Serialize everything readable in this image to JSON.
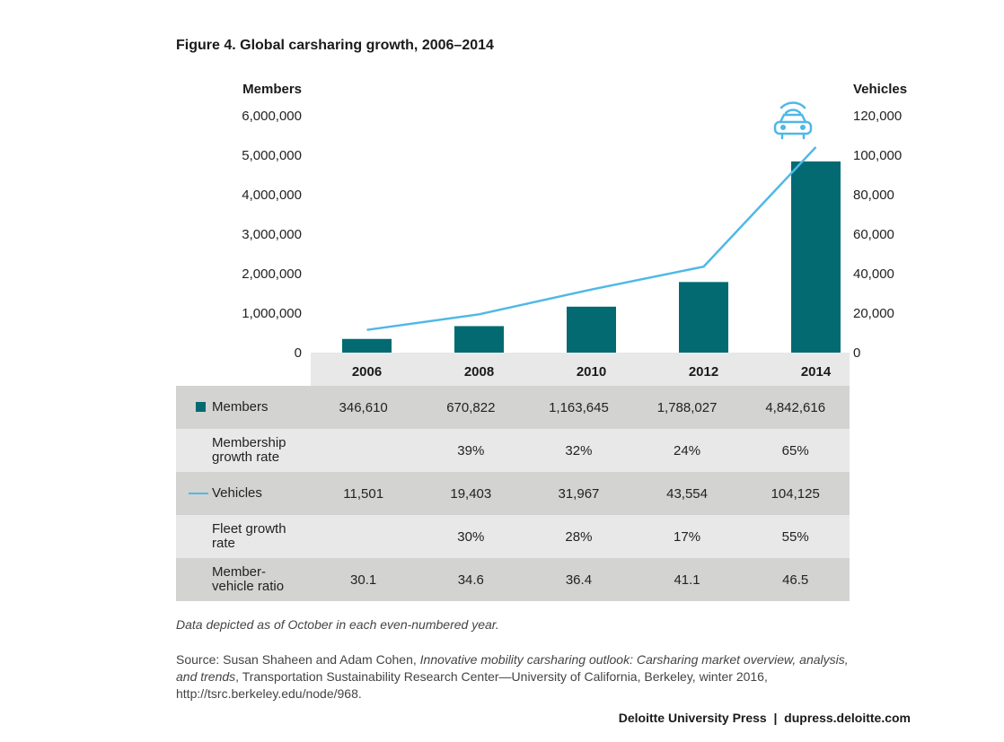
{
  "chart_data": {
    "type": "bar",
    "title": "Figure 4. Global carsharing growth, 2006–2014",
    "categories": [
      "2006",
      "2008",
      "2010",
      "2012",
      "2014"
    ],
    "y_left_label": "Members",
    "y_right_label": "Vehicles",
    "y_left_range": [
      0,
      6000000
    ],
    "y_right_range": [
      0,
      120000
    ],
    "y_left_ticks": [
      "0",
      "1,000,000",
      "2,000,000",
      "3,000,000",
      "4,000,000",
      "5,000,000",
      "6,000,000"
    ],
    "y_right_ticks": [
      "0",
      "20,000",
      "40,000",
      "60,000",
      "80,000",
      "100,000",
      "120,000"
    ],
    "grid": false,
    "series": [
      {
        "name": "Members",
        "type": "bar",
        "axis": "left",
        "color": "#046a72",
        "values": [
          346610,
          670822,
          1163645,
          1788027,
          4842616
        ]
      },
      {
        "name": "Vehicles",
        "type": "line",
        "axis": "right",
        "color": "#4fb8e6",
        "values": [
          11501,
          19403,
          31967,
          43554,
          104125
        ]
      }
    ]
  },
  "table": {
    "rows": [
      {
        "label": "Members",
        "marker": "bar",
        "values": [
          "346,610",
          "670,822",
          "1,163,645",
          "1,788,027",
          "4,842,616"
        ]
      },
      {
        "label": "Membership growth rate",
        "marker": "",
        "values": [
          "",
          "39%",
          "32%",
          "24%",
          "65%"
        ]
      },
      {
        "label": "Vehicles",
        "marker": "line",
        "values": [
          "11,501",
          "19,403",
          "31,967",
          "43,554",
          "104,125"
        ]
      },
      {
        "label": "Fleet growth rate",
        "marker": "",
        "values": [
          "",
          "30%",
          "28%",
          "17%",
          "55%"
        ]
      },
      {
        "label": "Member-vehicle ratio",
        "marker": "",
        "values": [
          "30.1",
          "34.6",
          "36.4",
          "41.1",
          "46.5"
        ]
      }
    ]
  },
  "note": "Data depicted as of October in each even-numbered year.",
  "source": {
    "prefix": "Source: Susan Shaheen and Adam Cohen, ",
    "italic": "Innovative mobility carsharing outlook: Carsharing market overview, analysis, and trends",
    "suffix": ", Transportation Sustainability Research Center—University of California, Berkeley, winter 2016, http://tsrc.berkeley.edu/node/968."
  },
  "footer": "Deloitte University Press  |  dupress.deloitte.com",
  "icon": "connected-car-icon"
}
